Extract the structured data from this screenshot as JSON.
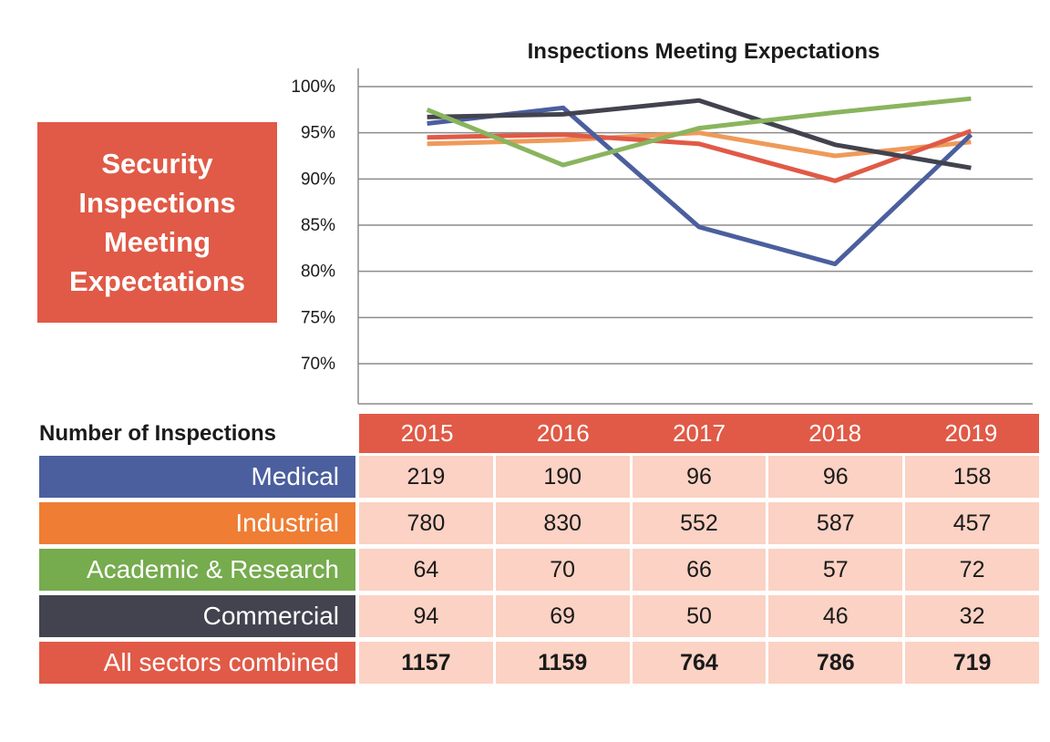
{
  "side_title": "Security Inspections Meeting Expectations",
  "table": {
    "title": "Number of Inspections",
    "years": [
      "2015",
      "2016",
      "2017",
      "2018",
      "2019"
    ],
    "rows": [
      {
        "label": "Medical",
        "color": "#4b5f9e",
        "values": [
          "219",
          "190",
          "96",
          "96",
          "158"
        ]
      },
      {
        "label": "Industrial",
        "color": "#ef7d34",
        "values": [
          "780",
          "830",
          "552",
          "587",
          "457"
        ]
      },
      {
        "label": "Academic & Research",
        "color": "#76ab4e",
        "values": [
          "64",
          "70",
          "66",
          "57",
          "72"
        ]
      },
      {
        "label": "Commercial",
        "color": "#42434f",
        "values": [
          "94",
          "69",
          "50",
          "46",
          "32"
        ]
      },
      {
        "label": "All sectors combined",
        "color": "#e05a47",
        "values": [
          "1157",
          "1159",
          "764",
          "786",
          "719"
        ]
      }
    ]
  },
  "chart_data": {
    "type": "line",
    "title": "Inspections Meeting Expectations",
    "x": [
      "2015",
      "2016",
      "2017",
      "2018",
      "2019"
    ],
    "ylim": [
      70,
      100
    ],
    "yticks": [
      "100%",
      "95%",
      "90%",
      "85%",
      "80%",
      "75%",
      "70%"
    ],
    "grid": true,
    "series": [
      {
        "color": "#ef9a5a",
        "values": [
          93.8,
          94.2,
          95.0,
          92.5,
          94.0
        ]
      },
      {
        "color": "#e05a47",
        "values": [
          94.5,
          94.8,
          93.8,
          89.8,
          95.2
        ]
      },
      {
        "color": "#4b5f9e",
        "values": [
          96.0,
          97.7,
          84.8,
          80.8,
          94.8
        ]
      },
      {
        "color": "#42434f",
        "values": [
          96.7,
          97.0,
          98.5,
          93.7,
          91.2
        ]
      },
      {
        "color": "#8ab45e",
        "values": [
          97.5,
          91.5,
          95.5,
          97.2,
          98.7
        ]
      }
    ]
  }
}
